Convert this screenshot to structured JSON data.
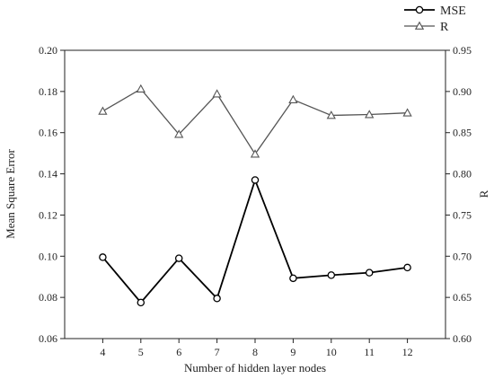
{
  "chart_data": {
    "type": "line",
    "xlabel": "Number of hidden layer nodes",
    "ylabel_left": "Mean Square Error",
    "ylabel_right": "R",
    "x": [
      4,
      5,
      6,
      7,
      8,
      9,
      10,
      11,
      12
    ],
    "x_ticks": [
      "4",
      "5",
      "6",
      "7",
      "8",
      "9",
      "10",
      "11",
      "12"
    ],
    "xlim": [
      3,
      13
    ],
    "ylim_left": [
      0.06,
      0.2
    ],
    "ylim_right": [
      0.6,
      0.95
    ],
    "yticks_left": [
      "0.06",
      "0.08",
      "0.10",
      "0.12",
      "0.14",
      "0.16",
      "0.18",
      "0.20"
    ],
    "yticks_right": [
      "0.60",
      "0.65",
      "0.70",
      "0.75",
      "0.80",
      "0.85",
      "0.90",
      "0.95"
    ],
    "legend_position": "top-right, outside plot",
    "series": [
      {
        "name": "MSE",
        "axis": "left",
        "marker": "circle",
        "color": "#000000",
        "values": [
          0.0995,
          0.0775,
          0.099,
          0.0795,
          0.137,
          0.0893,
          0.0908,
          0.092,
          0.0945
        ]
      },
      {
        "name": "R",
        "axis": "right",
        "marker": "triangle",
        "color": "#555555",
        "values": [
          0.876,
          0.903,
          0.848,
          0.897,
          0.824,
          0.89,
          0.871,
          0.872,
          0.874
        ]
      }
    ]
  }
}
